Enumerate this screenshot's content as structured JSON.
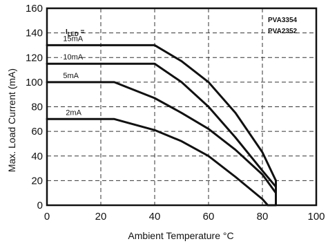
{
  "chart_data": {
    "type": "line",
    "title": "",
    "xlabel": "Ambient Temperature °C",
    "ylabel": "Max. Load Current (mA)",
    "xlim": [
      0,
      100
    ],
    "ylim": [
      0,
      160
    ],
    "xticks": [
      0,
      20,
      40,
      60,
      80,
      100
    ],
    "yticks": [
      0,
      20,
      40,
      60,
      80,
      100,
      120,
      140,
      160
    ],
    "grid": true,
    "legend_title": "I",
    "legend_title_sub": "LED",
    "legend_title_suffix": " =",
    "part_numbers": [
      "PVA3354",
      "PVA2352"
    ],
    "series": [
      {
        "name": "15mA",
        "points": [
          [
            0,
            130
          ],
          [
            40,
            130
          ],
          [
            50,
            117
          ],
          [
            60,
            100
          ],
          [
            70,
            75
          ],
          [
            80,
            43
          ],
          [
            85,
            20
          ]
        ]
      },
      {
        "name": "10mA",
        "points": [
          [
            0,
            115
          ],
          [
            40,
            115
          ],
          [
            50,
            100
          ],
          [
            60,
            80
          ],
          [
            70,
            55
          ],
          [
            80,
            28
          ],
          [
            85,
            15
          ]
        ]
      },
      {
        "name": "5mA",
        "points": [
          [
            0,
            100
          ],
          [
            25,
            100
          ],
          [
            40,
            87
          ],
          [
            50,
            75
          ],
          [
            60,
            62
          ],
          [
            70,
            45
          ],
          [
            80,
            25
          ],
          [
            85,
            10
          ]
        ]
      },
      {
        "name": "2mA",
        "points": [
          [
            0,
            70
          ],
          [
            25,
            70
          ],
          [
            40,
            61
          ],
          [
            50,
            52
          ],
          [
            60,
            40
          ],
          [
            70,
            23
          ],
          [
            80,
            5
          ],
          [
            82,
            0
          ],
          [
            85,
            0
          ],
          [
            85,
            20
          ]
        ]
      }
    ],
    "curve_label_anchor_x": [
      6,
      6,
      6,
      7
    ]
  }
}
